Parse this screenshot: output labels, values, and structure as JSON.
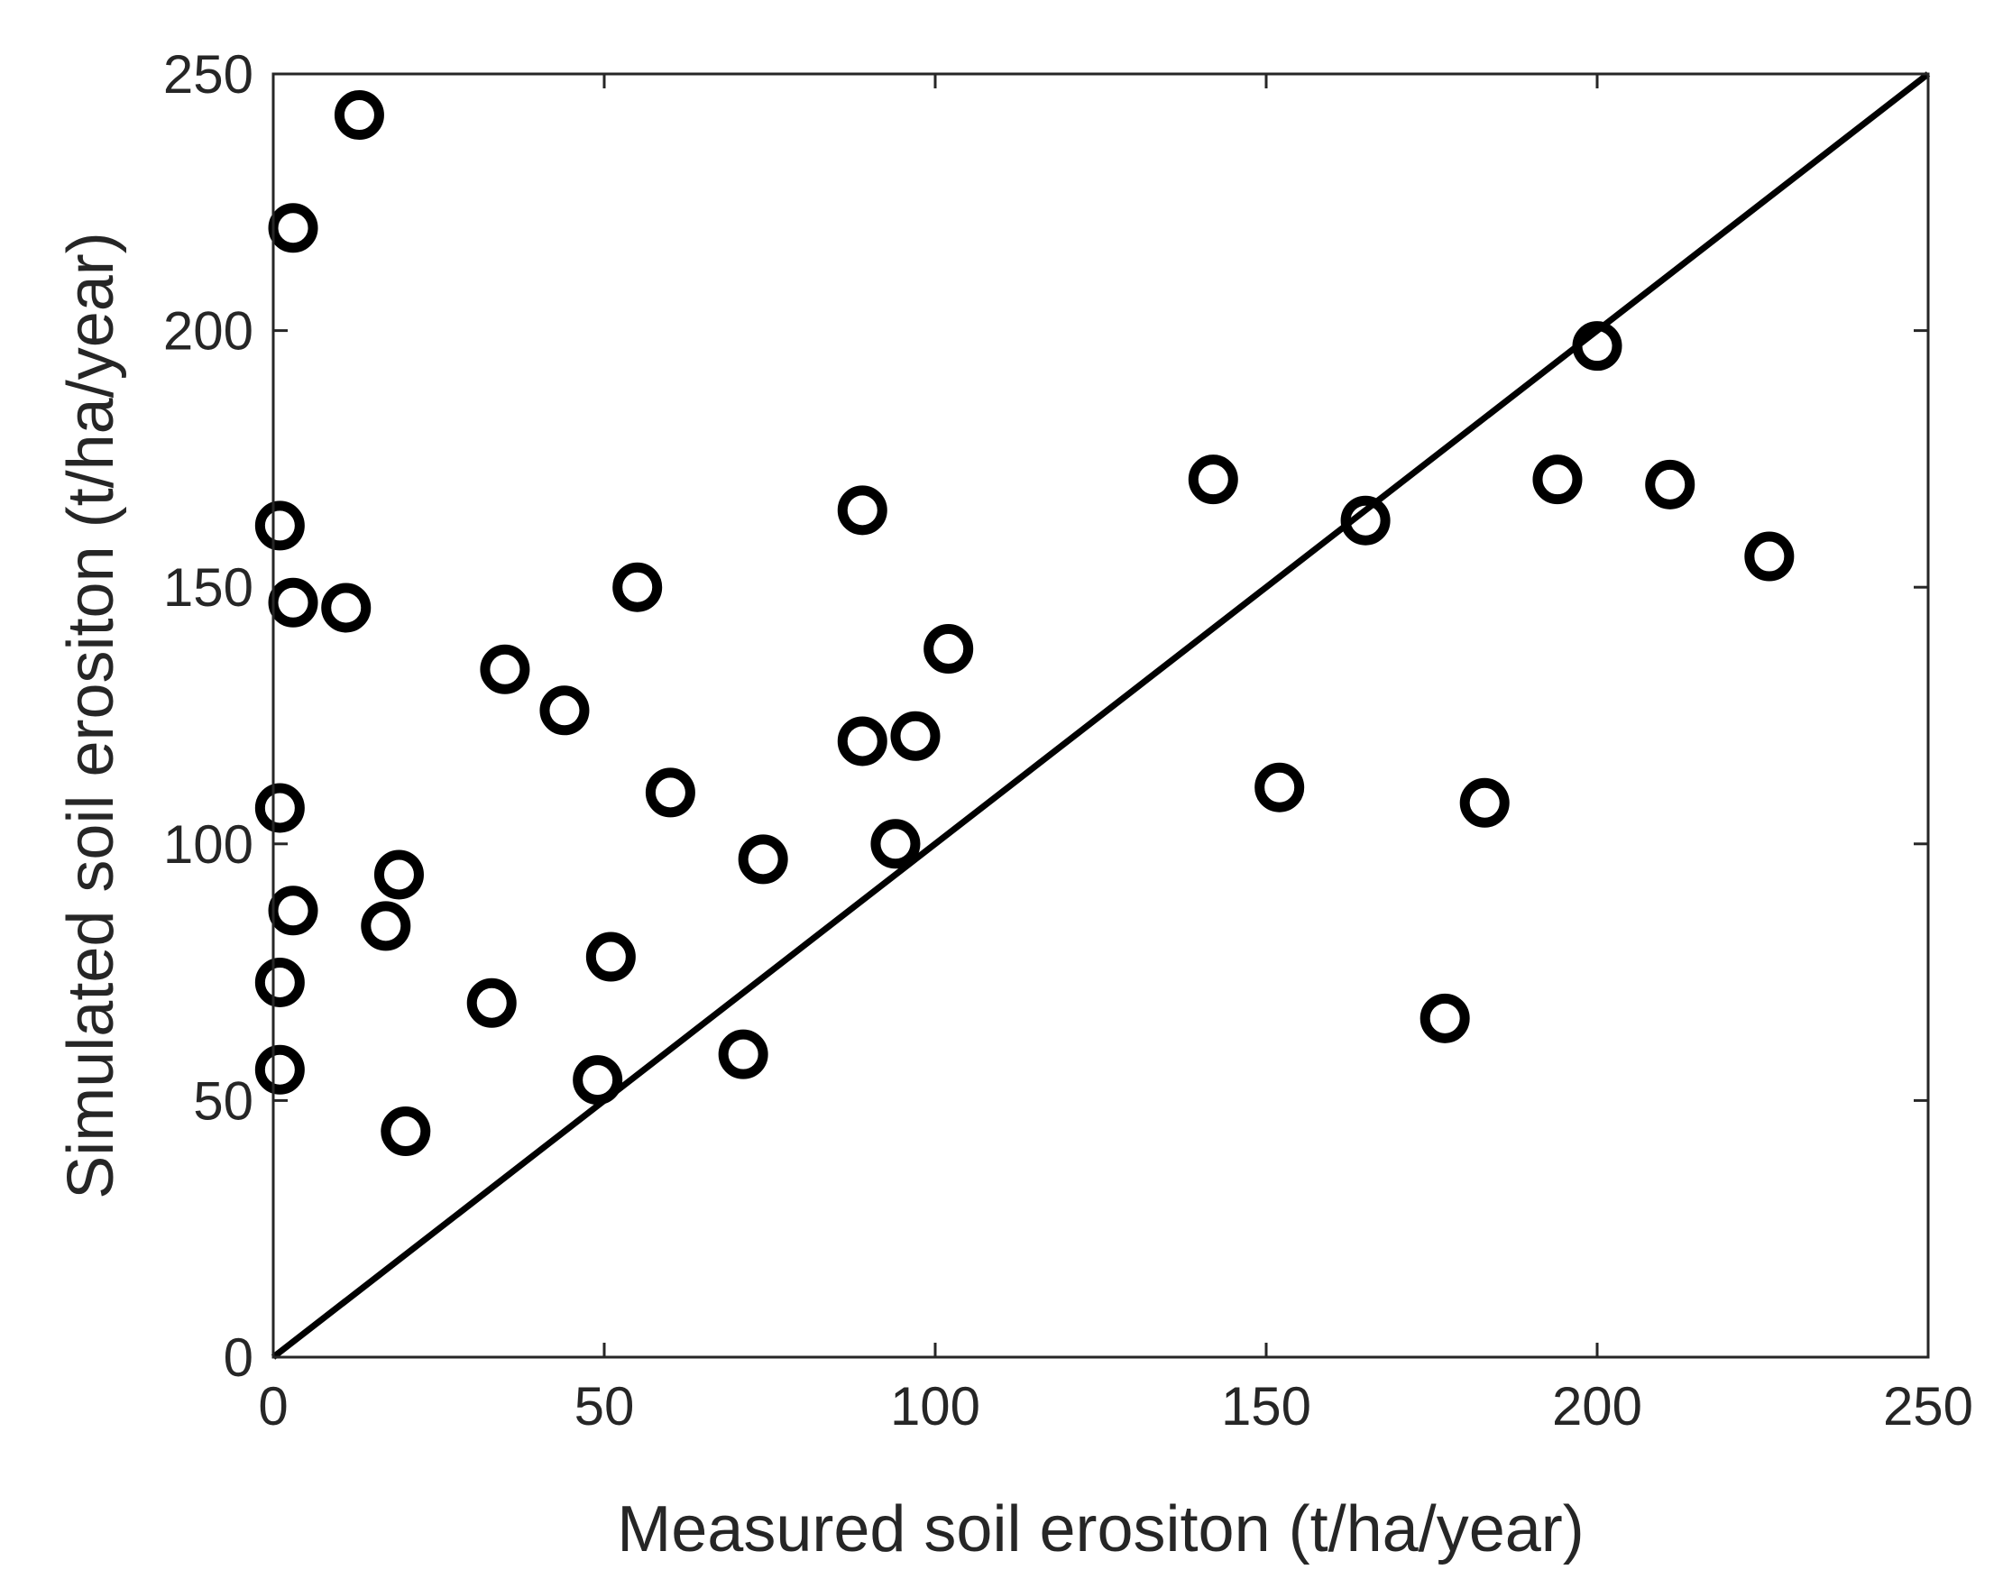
{
  "chart_data": {
    "type": "scatter",
    "title": "",
    "xlabel": "Measured soil erositon (t/ha/year)",
    "ylabel": "Simulated soil erositon (t/ha/year)",
    "xlim": [
      0,
      250
    ],
    "ylim": [
      0,
      250
    ],
    "xticks": [
      0,
      50,
      100,
      150,
      200,
      250
    ],
    "yticks": [
      0,
      50,
      100,
      150,
      200,
      250
    ],
    "xtick_labels": [
      "0",
      "50",
      "100",
      "150",
      "200",
      "250"
    ],
    "ytick_labels": [
      "0",
      "50",
      "100",
      "150",
      "200",
      "250"
    ],
    "grid": false,
    "reference_line": {
      "from": [
        0,
        0
      ],
      "to": [
        250,
        250
      ],
      "color": "#000000"
    },
    "marker": {
      "shape": "circle",
      "filled": false,
      "color": "#000000"
    },
    "series": [
      {
        "name": "samples",
        "x": [
          13,
          3,
          1,
          3,
          11,
          1,
          3,
          1,
          1,
          19,
          17,
          20,
          35,
          33,
          44,
          55,
          60,
          51,
          49,
          74,
          71,
          89,
          89,
          97,
          94,
          102,
          142,
          152,
          165,
          177,
          183,
          194,
          200,
          211,
          226
        ],
        "y": [
          242,
          220,
          162,
          147,
          146,
          107,
          87,
          73,
          56,
          94,
          84,
          44,
          134,
          69,
          126,
          150,
          110,
          78,
          54,
          97,
          59,
          165,
          120,
          121,
          100,
          138,
          171,
          111,
          163,
          66,
          108,
          171,
          197,
          170,
          156
        ]
      }
    ]
  }
}
